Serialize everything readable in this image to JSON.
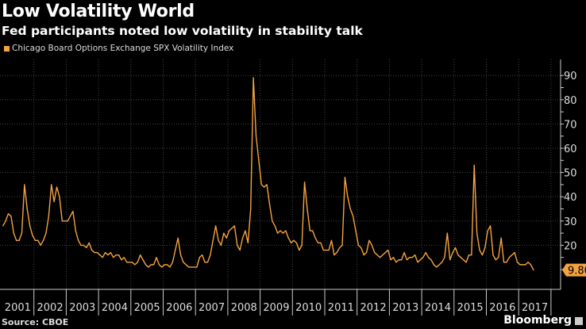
{
  "chart_data": {
    "type": "line",
    "title": "Low Volatility World",
    "subtitle": "Fed participants noted low volatility in stability talk",
    "source": "Source: CBOE",
    "brand": "Bloomberg",
    "legend": {
      "position": "top-left",
      "entries": [
        "Chicago Board Options Exchange SPX Volatility Index"
      ]
    },
    "series": [
      {
        "name": "Chicago Board Options Exchange SPX Volatility Index",
        "color": "#f5a340",
        "start": "2001-01",
        "frequency": "monthly",
        "values": [
          28,
          30,
          33,
          32,
          25,
          22,
          22,
          25,
          45,
          35,
          28,
          24,
          22,
          22,
          20,
          22,
          25,
          32,
          45,
          38,
          44,
          40,
          30,
          30,
          30,
          32,
          34,
          26,
          22,
          20,
          20,
          19,
          21,
          18,
          17,
          17,
          16,
          15,
          17,
          16,
          17,
          15,
          16,
          16,
          14,
          15,
          13,
          13,
          13,
          12,
          13,
          16,
          14,
          12,
          11,
          12,
          12,
          15,
          12,
          11,
          12,
          12,
          11,
          13,
          18,
          23,
          16,
          13,
          12,
          11,
          11,
          11,
          11,
          15,
          16,
          13,
          13,
          16,
          22,
          28,
          22,
          20,
          25,
          23,
          26,
          27,
          28,
          20,
          18,
          23,
          26,
          21,
          35,
          89,
          65,
          55,
          45,
          44,
          45,
          37,
          30,
          28,
          25,
          26,
          25,
          26,
          23,
          21,
          22,
          21,
          18,
          20,
          46,
          35,
          26,
          26,
          23,
          21,
          21,
          18,
          18,
          18,
          22,
          16,
          17,
          19,
          20,
          48,
          40,
          35,
          32,
          26,
          20,
          19,
          16,
          17,
          22,
          20,
          17,
          16,
          15,
          16,
          17,
          18,
          14,
          15,
          13,
          14,
          14,
          17,
          14,
          15,
          15,
          16,
          13,
          14,
          15,
          17,
          15,
          14,
          12,
          11,
          12,
          13,
          15,
          25,
          14,
          17,
          19,
          16,
          15,
          14,
          13,
          16,
          16,
          53,
          25,
          18,
          16,
          19,
          26,
          28,
          16,
          14,
          15,
          23,
          13,
          13,
          15,
          16,
          17,
          13,
          12,
          12,
          12,
          13,
          12,
          9.8
        ]
      }
    ],
    "last_value_label": "9.80",
    "x_ticks": [
      "2001",
      "2002",
      "2003",
      "2004",
      "2005",
      "2006",
      "2007",
      "2008",
      "2009",
      "2010",
      "2011",
      "2012",
      "2013",
      "2014",
      "2015",
      "2016",
      "2017"
    ],
    "y_ticks": [
      "20",
      "30",
      "40",
      "50",
      "60",
      "70",
      "80",
      "90"
    ],
    "y_axis_side": "right",
    "ylim": [
      2,
      97
    ],
    "grid": true
  }
}
